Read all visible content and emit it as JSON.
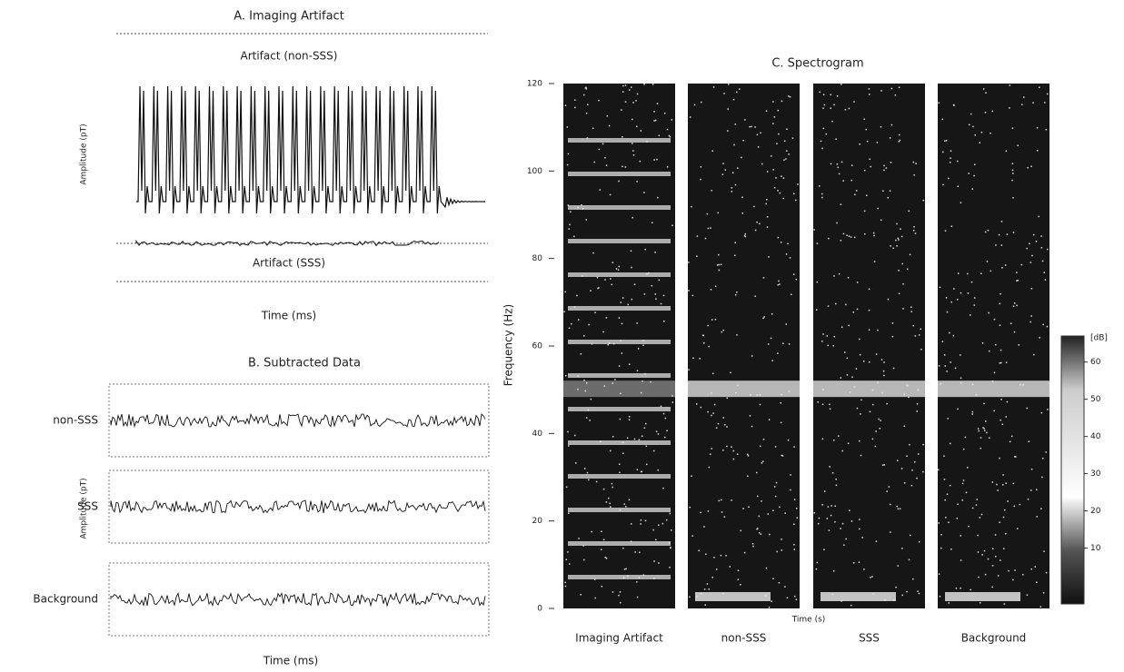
{
  "panel_a": {
    "title": "A. Imaging Artifact",
    "label_top": "Artifact (non-SSS)",
    "label_bottom": "Artifact (SSS)",
    "xlabel": "Time (ms)",
    "ylabel": "Amplitude (pT)"
  },
  "panel_b": {
    "title": "B. Subtracted Data",
    "rows": [
      "non-SSS",
      "SSS",
      "Background"
    ],
    "ylabel": "Amplitude (pT)",
    "xlabel": "Time (ms)"
  },
  "panel_c": {
    "title": "C. Spectrogram",
    "ylabel": "Frequency (Hz)",
    "xlabel": "Time (s)",
    "ylim": [
      0,
      120
    ],
    "yticks": [
      0,
      20,
      40,
      60,
      80,
      100,
      120
    ],
    "panels": [
      "Imaging Artifact",
      "non-SSS",
      "SSS",
      "Background"
    ],
    "colorbar": {
      "unit": "[dB]",
      "lim": [
        -5,
        67
      ],
      "ticks": [
        10,
        20,
        30,
        40,
        50,
        60
      ]
    }
  }
}
